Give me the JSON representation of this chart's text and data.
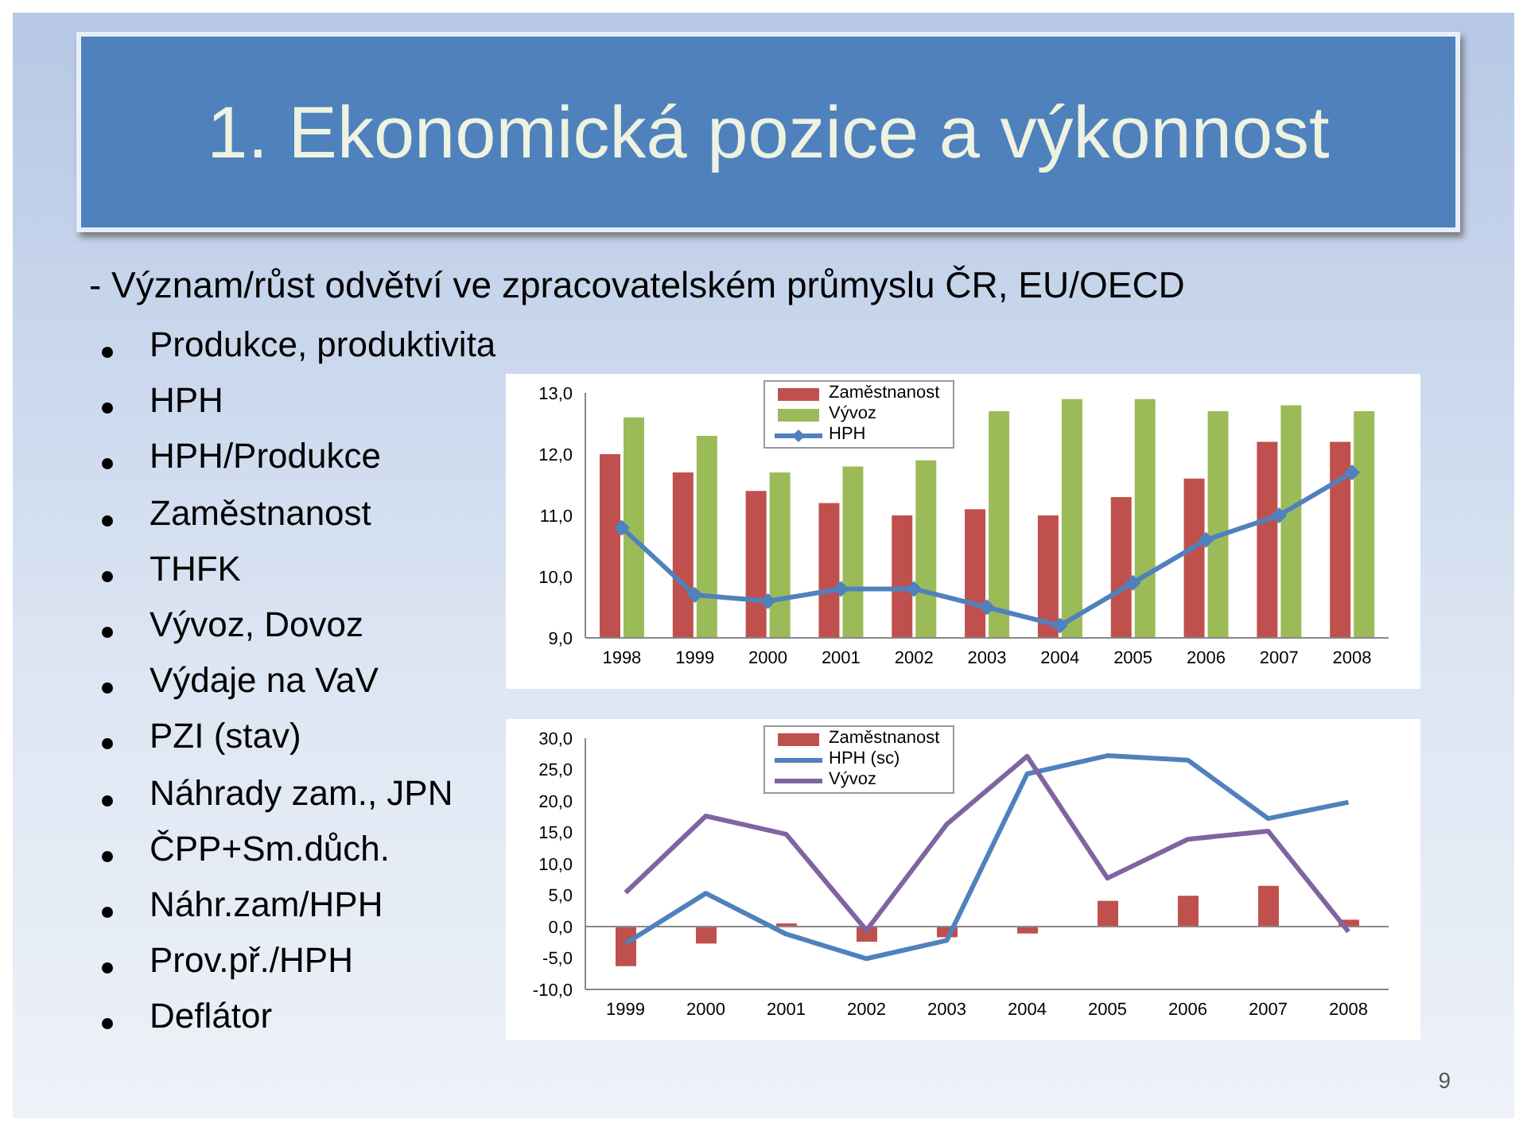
{
  "chart_data": [
    {
      "type": "bar",
      "title": "1. Ekonomická pozice a výkonnost",
      "subtitle": "- Význam/růst odvětví ve zpracovatelském průmyslu  ČR, EU/OECD",
      "annotations": [
        "Produkce, produktivita",
        "HPH",
        "HPH/Produkce",
        "Zaměstnanost",
        "THFK",
        "Vývoz, Dovoz",
        "Výdaje na VaV",
        "PZI (stav)",
        "Náhrady zam., JPN",
        "ČPP+Sm.důch.",
        "Náhr.zam/HPH",
        "Prov.př./HPH",
        "Deflátor"
      ],
      "categories": [
        "1998",
        "1999",
        "2000",
        "2001",
        "2002",
        "2003",
        "2004",
        "2005",
        "2006",
        "2007",
        "2008"
      ],
      "series": [
        {
          "name": "Zaměstnanost",
          "color": "#c0504d",
          "values": [
            12.0,
            11.7,
            11.4,
            11.2,
            11.0,
            11.1,
            11.0,
            11.3,
            11.6,
            12.2,
            12.2
          ]
        },
        {
          "name": "Vývoz",
          "color": "#9bbb59",
          "values": [
            12.6,
            12.3,
            11.7,
            11.8,
            11.9,
            12.7,
            12.9,
            12.9,
            12.7,
            12.8,
            12.7
          ]
        },
        {
          "name": "HPH",
          "type": "line",
          "color": "#4f81bd",
          "values": [
            10.8,
            9.7,
            9.6,
            9.8,
            9.8,
            9.5,
            9.2,
            9.9,
            10.6,
            11.0,
            11.7
          ]
        }
      ],
      "ylim": [
        9,
        13
      ],
      "yticks": [
        {
          "value": 9,
          "label": "9,0"
        },
        {
          "value": 10,
          "label": "10,0"
        },
        {
          "value": 11,
          "label": "11,0"
        },
        {
          "value": 12,
          "label": "12,0"
        },
        {
          "value": 13,
          "label": "13,0"
        }
      ],
      "legend": "top",
      "marker": "diamond"
    },
    {
      "type": "bar",
      "annotations": [
        "9"
      ],
      "categories": [
        "1999",
        "2000",
        "2001",
        "2002",
        "2003",
        "2004",
        "2005",
        "2006",
        "2007",
        "2008"
      ],
      "series": [
        {
          "name": "Zaměstnanost",
          "color": "#c0504d",
          "values": [
            -6.3,
            -2.7,
            0.5,
            -2.4,
            -1.7,
            -1.1,
            4.1,
            4.9,
            6.5,
            1.1
          ]
        },
        {
          "name": "HPH (sc)",
          "type": "line",
          "color": "#4f81bd",
          "values": [
            -2.7,
            5.3,
            -1.2,
            -5.1,
            -2.2,
            24.3,
            27.2,
            26.5,
            17.2,
            19.8
          ]
        },
        {
          "name": "Vývoz",
          "type": "line",
          "color": "#8064a2",
          "values": [
            5.4,
            17.6,
            14.7,
            -0.6,
            16.3,
            27.1,
            7.7,
            13.9,
            15.2,
            -0.8
          ]
        }
      ],
      "ylim": [
        -10,
        30
      ],
      "yticks": [
        {
          "value": -10,
          "label": "-10,0"
        },
        {
          "value": -5,
          "label": "-5,0"
        },
        {
          "value": 0,
          "label": "0,0"
        },
        {
          "value": 5,
          "label": "5,0"
        },
        {
          "value": 10,
          "label": "10,0"
        },
        {
          "value": 15,
          "label": "15,0"
        },
        {
          "value": 20,
          "label": "20,0"
        },
        {
          "value": 25,
          "label": "25,0"
        },
        {
          "value": 30,
          "label": "30,0"
        }
      ],
      "legend": "top"
    }
  ]
}
